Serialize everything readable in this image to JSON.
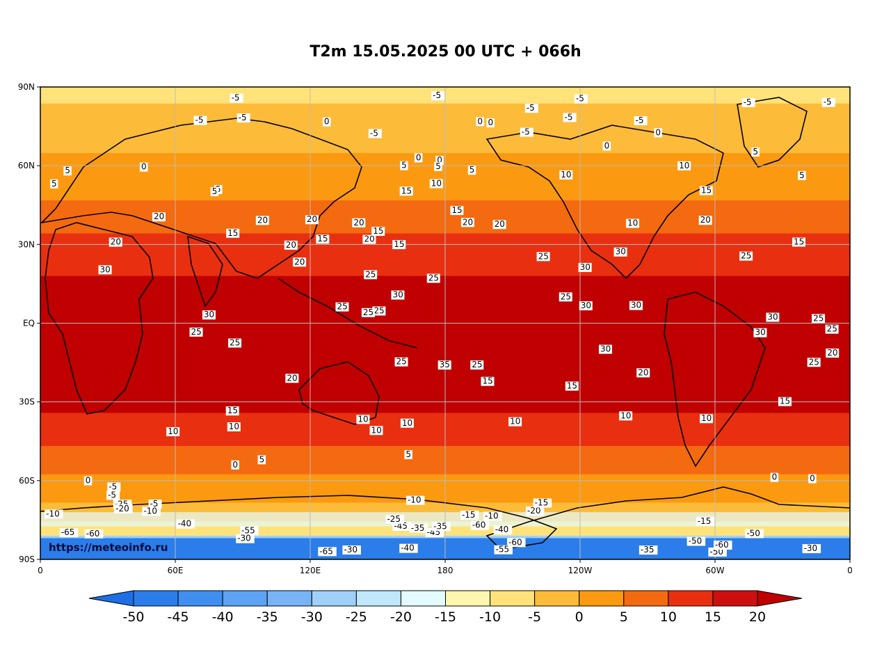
{
  "title": "T2m 15.05.2025 00 UTC + 066h",
  "credit": "https://meteoinfo.ru",
  "lat_ticks": [
    "90N",
    "60N",
    "30N",
    "EQ",
    "30S",
    "60S",
    "90S"
  ],
  "lon_ticks": [
    "0",
    "60E",
    "120E",
    "180",
    "120W",
    "60W",
    "0"
  ],
  "colorbar": {
    "labels": [
      "-50",
      "-45",
      "-40",
      "-35",
      "-30",
      "-25",
      "-20",
      "-15",
      "-10",
      "-5",
      "0",
      "5",
      "10",
      "15",
      "20"
    ],
    "under_color": "#1e6fe6",
    "over_color": "#c00000",
    "colors": [
      "#2b7de9",
      "#3f8ef0",
      "#5ea3f3",
      "#78b4f5",
      "#9fd0f8",
      "#bfe9fb",
      "#e3fbfd",
      "#fff6b0",
      "#ffe37a",
      "#fdbb3a",
      "#fb9a10",
      "#f36a10",
      "#e83010",
      "#cc1010"
    ]
  },
  "bands": [
    {
      "name": "arctic-fringe",
      "color": "#ffe37a"
    },
    {
      "name": "arctic",
      "color": "#fdbb3a"
    },
    {
      "name": "north-cold",
      "color": "#fb9a10"
    },
    {
      "name": "north-mid",
      "color": "#f36a10"
    },
    {
      "name": "north-temperate",
      "color": "#e83010"
    },
    {
      "name": "tropics",
      "color": "#c00000"
    },
    {
      "name": "south-temperate",
      "color": "#e83010"
    },
    {
      "name": "south-mid",
      "color": "#f36a10"
    },
    {
      "name": "south-cold",
      "color": "#fb9a10"
    },
    {
      "name": "southern-ocean",
      "color": "#fdbb3a"
    },
    {
      "name": "antarctic-fringe",
      "color": "#ffe37a"
    },
    {
      "name": "antarctic-ice",
      "color": "#9fd0f8"
    },
    {
      "name": "antarctic-plateau",
      "color": "#2b7de9"
    }
  ],
  "contour_labels": [
    "-5",
    "-5",
    "-5",
    "-5",
    "-5",
    "-5",
    "0",
    "0",
    "0",
    "-5",
    "-5",
    "-5",
    "0",
    "0",
    "-5",
    "-5",
    "-5",
    "10",
    "15",
    "10",
    "5",
    "0",
    "5",
    "0",
    "5",
    "0",
    "-5",
    "5",
    "5",
    "10",
    "5",
    "15",
    "5",
    "0",
    "5",
    "10",
    "15",
    "15",
    "20",
    "10",
    "5",
    "10",
    "15",
    "20",
    "25",
    "20",
    "15",
    "10",
    "15",
    "20",
    "25",
    "30",
    "20",
    "30",
    "25",
    "20",
    "30",
    "35",
    "30",
    "25",
    "25",
    "30",
    "30",
    "25",
    "20",
    "25",
    "25",
    "20",
    "25",
    "30",
    "25",
    "20",
    "30",
    "30",
    "20",
    "15",
    "25",
    "25",
    "20",
    "10",
    "15",
    "20",
    "25",
    "25",
    "20",
    "30",
    "15",
    "25",
    "20",
    "10",
    "5",
    "10",
    "15",
    "15",
    "10",
    "5",
    "10",
    "0",
    "0",
    "0",
    "-5",
    "-5",
    "-10",
    "-10",
    "-15",
    "-15",
    "-20",
    "-25",
    "-30",
    "-35",
    "-40",
    "-45",
    "-50",
    "-55",
    "-60",
    "-65",
    "-50",
    "-60",
    "-35",
    "-45",
    "-30",
    "-40",
    "-60",
    "-35",
    "-10",
    "-10",
    "-15",
    "-20",
    "-25",
    "-30",
    "-40",
    "-50",
    "-60",
    "-55",
    "-65"
  ]
}
